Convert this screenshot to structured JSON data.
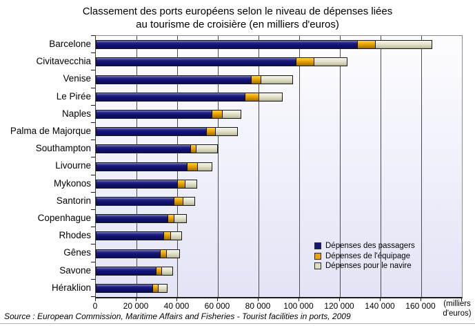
{
  "header": {
    "title_line1": "Classement des ports européens selon le niveau de dépenses liées",
    "title_line2": "au tourisme de croisière (en milliers d'euros)"
  },
  "chart_data": {
    "type": "bar",
    "orientation": "horizontal",
    "stacked": true,
    "title": "Classement des ports européens selon le niveau de dépenses liées au tourisme de croisière (en milliers d'euros)",
    "categories": [
      "Barcelone",
      "Civitavecchia",
      "Venise",
      "Le Pirée",
      "Naples",
      "Palma de Majorque",
      "Southampton",
      "Livourne",
      "Mykonos",
      "Santorin",
      "Copenhague",
      "Rhodes",
      "Gênes",
      "Savone",
      "Héraklion"
    ],
    "series": [
      {
        "name": "Dépenses des passagers",
        "color": "#16167a",
        "values": [
          128000,
          98000,
          76000,
          73000,
          56500,
          54000,
          46000,
          44500,
          39500,
          38000,
          35000,
          33000,
          31000,
          29000,
          27500
        ]
      },
      {
        "name": "Dépenses de l'équipage",
        "color": "#eca400",
        "values": [
          8500,
          8500,
          4500,
          6500,
          5000,
          4000,
          2500,
          4500,
          3500,
          4000,
          2500,
          3000,
          3000,
          2500,
          2500
        ]
      },
      {
        "name": "Dépenses pour le navire",
        "color": "#ddddc2",
        "values": [
          27500,
          16000,
          15000,
          11000,
          8500,
          10500,
          10000,
          7000,
          5500,
          5500,
          6000,
          5000,
          6000,
          5000,
          4000
        ]
      }
    ],
    "x_axis": {
      "max": 180000,
      "ticks": [
        0,
        20000,
        40000,
        60000,
        80000,
        100000,
        120000,
        140000,
        160000
      ],
      "tick_labels": [
        "0",
        "20 000",
        "40 000",
        "60 000",
        "80 000",
        "100 000",
        "120 000",
        "140 000",
        "160 000"
      ],
      "unit_label": "(milliers d'euros)",
      "unit_label_lines": [
        "(milliers",
        "d'euros)"
      ]
    },
    "grid": true,
    "legend_position": "inside-bottom-right",
    "plot_background": {
      "top": "#fdfdff",
      "bottom": "#e2e4f6"
    }
  },
  "source": {
    "text": "Source : European Commission, Maritime Affairs and Fisheries - Tourist facilities in ports, 2009"
  }
}
